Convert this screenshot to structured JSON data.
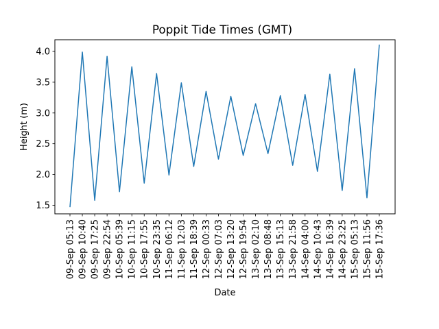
{
  "chart_data": {
    "type": "line",
    "title": "Poppit Tide Times (GMT)",
    "xlabel": "Date",
    "ylabel": "Height (m)",
    "ylim": [
      1.36,
      4.19
    ],
    "yticks": [
      "1.5",
      "2.0",
      "2.5",
      "3.0",
      "3.5",
      "4.0"
    ],
    "grid": false,
    "color": "#1f77b4",
    "x": [
      "09-Sep 05:13",
      "09-Sep 10:40",
      "09-Sep 17:25",
      "09-Sep 22:54",
      "10-Sep 05:39",
      "10-Sep 11:15",
      "10-Sep 17:55",
      "10-Sep 23:35",
      "11-Sep 06:12",
      "11-Sep 12:03",
      "11-Sep 18:39",
      "12-Sep 00:33",
      "12-Sep 07:03",
      "12-Sep 13:20",
      "12-Sep 19:54",
      "13-Sep 02:10",
      "13-Sep 08:48",
      "13-Sep 15:13",
      "13-Sep 21:58",
      "14-Sep 04:00",
      "14-Sep 10:43",
      "14-Sep 16:39",
      "14-Sep 23:25",
      "15-Sep 05:13",
      "15-Sep 11:56",
      "15-Sep 17:36"
    ],
    "series": [
      {
        "values": [
          1.47,
          3.99,
          1.58,
          3.92,
          1.72,
          3.75,
          1.86,
          3.64,
          1.99,
          3.49,
          2.13,
          3.35,
          2.25,
          3.27,
          2.31,
          3.15,
          2.34,
          3.28,
          2.15,
          3.3,
          2.05,
          3.63,
          1.74,
          3.72,
          1.62,
          4.11
        ]
      }
    ]
  }
}
